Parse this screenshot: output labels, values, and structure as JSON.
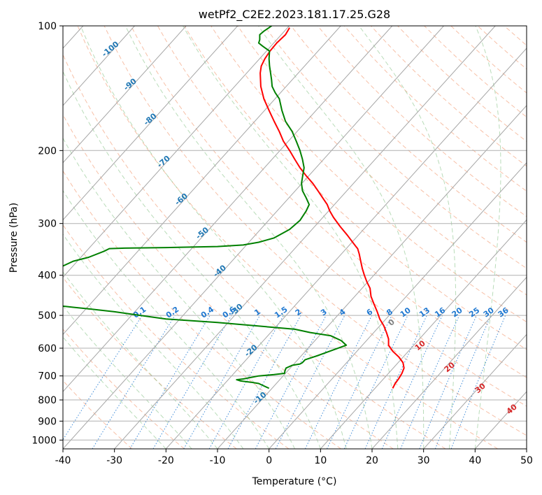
{
  "chart_data": {
    "type": "line",
    "title": "wetPf2_C2E2.2023.181.17.25.G28",
    "xlabel": "Temperature (°C)",
    "ylabel": "Pressure (hPa)",
    "xlim": [
      -40,
      50
    ],
    "ylim": [
      1050,
      100
    ],
    "y_scale": "log",
    "grid": true,
    "x_ticks": [
      -40,
      -30,
      -20,
      -10,
      0,
      10,
      20,
      30,
      40,
      50
    ],
    "y_ticks": [
      100,
      200,
      300,
      400,
      500,
      600,
      700,
      800,
      900,
      1000
    ],
    "skew_isotherm_labels": [
      -100,
      -90,
      -80,
      -70,
      -60,
      -50,
      -40,
      -30,
      -20,
      -10,
      0,
      10,
      20,
      30,
      40
    ],
    "mixing_ratio_labels": [
      "0.1",
      "0.2",
      "0.4",
      "0.6",
      "1",
      "1.5",
      "2",
      "3",
      "4",
      "6",
      "8",
      "10",
      "13",
      "16",
      "20",
      "25",
      "30",
      "36"
    ],
    "colors": {
      "temperature": "#ff0000",
      "dewpoint": "#008000",
      "isotherm": "#a6a6a6",
      "dry_adiabat": "#f4a582",
      "moist_adiabat": "#7fbf7f",
      "mixing_ratio": "#1f78d1",
      "isotherm_label_cold": "#1f77b4",
      "isotherm_label_warm": "#d62728",
      "isotherm_label_zero": "#808080"
    },
    "series": [
      {
        "x_plot": [
          24.0,
          24.5,
          25.2,
          25.8,
          26.2,
          26.0,
          25.2,
          24.0,
          23.2,
          23.2,
          22.8,
          22.3,
          21.5,
          21.0,
          20.4,
          19.8,
          19.6,
          19.0,
          18.5,
          18.1,
          17.8,
          17.5,
          17.2,
          16.8,
          16.4,
          15.2,
          13.8,
          12.5,
          11.8,
          11.3,
          10.4,
          9.5,
          8.5,
          7.2,
          6.0,
          5.0,
          4.0,
          2.8,
          2.0,
          1.0,
          0.0,
          -1.0,
          -1.6,
          -1.7,
          -1.5,
          -0.8,
          0.2,
          1.5,
          3.2,
          4.0
        ],
        "pressure": [
          750,
          730,
          710,
          690,
          670,
          650,
          630,
          610,
          590,
          570,
          550,
          530,
          510,
          490,
          470,
          450,
          430,
          415,
          400,
          385,
          370,
          355,
          345,
          340,
          335,
          320,
          305,
          290,
          280,
          270,
          260,
          250,
          240,
          230,
          220,
          210,
          200,
          190,
          180,
          170,
          160,
          150,
          140,
          130,
          125,
          120,
          115,
          110,
          105,
          101
        ]
      },
      {
        "x_plot": [
          0.0,
          -1.0,
          -2.0,
          -3.5,
          -5.5,
          -6.3,
          -5.0,
          -2.0,
          1.0,
          3.0,
          3.1,
          3.3,
          4.5,
          6.0,
          6.5,
          7.0,
          9.5,
          11.0,
          15.0,
          14.0,
          12.0,
          8.0,
          5.0,
          -10.0,
          -20.0,
          -25.0,
          -30.0,
          -35.0,
          -38.0,
          -40.0
        ],
        "pressure": [
          750,
          740,
          730,
          725,
          720,
          715,
          712,
          700,
          695,
          690,
          680,
          670,
          660,
          655,
          650,
          640,
          625,
          615,
          590,
          575,
          560,
          550,
          540,
          520,
          510,
          500,
          490,
          482,
          478,
          475
        ],
        "x_plot_note": ""
      },
      {
        "x_plot": [
          -40.0,
          -38.0,
          -35.0,
          -32.0,
          -31.0,
          -28.0,
          -20.0,
          -10.0,
          -5.0,
          -2.0,
          1.0,
          4.0,
          6.0,
          7.2,
          7.8,
          7.2,
          6.5,
          6.3,
          6.5,
          6.8,
          6.5,
          6.0,
          5.3,
          4.5,
          3.2,
          2.5,
          2.0,
          1.2,
          0.6,
          0.5,
          0.3,
          0.1,
          0.0,
          0.1,
          -1.2,
          -2.0,
          -1.8,
          -1.8,
          -1.0,
          0.0,
          0.5,
          1.0,
          1.5
        ],
        "pressure": [
          380,
          370,
          362,
          350,
          345,
          344,
          343,
          341,
          338,
          333,
          325,
          310,
          295,
          280,
          270,
          260,
          250,
          240,
          232,
          220,
          210,
          200,
          190,
          180,
          170,
          160,
          150,
          145,
          140,
          135,
          130,
          125,
          120,
          115,
          112,
          110,
          108,
          105,
          103,
          101,
          100,
          99,
          98
        ]
      }
    ],
    "series_note": ""
  }
}
